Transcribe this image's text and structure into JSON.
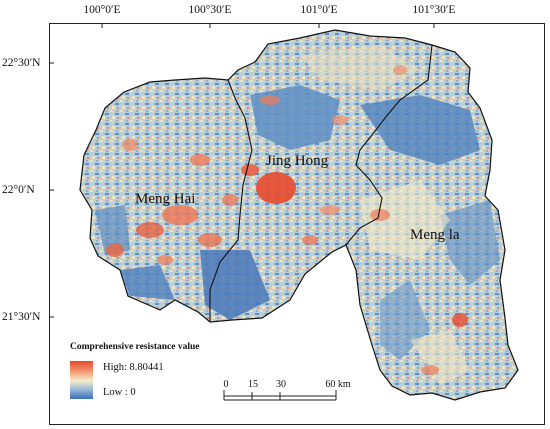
{
  "map": {
    "lon_labels": [
      "100°0′E",
      "100°30′E",
      "101°0′E",
      "101°30′E"
    ],
    "lat_labels": [
      "22°30′N",
      "22°0′N",
      "21°30′N"
    ],
    "regions": [
      "Meng Hai",
      "Jing Hong",
      "Meng la"
    ],
    "legend": {
      "title": "Comprehensive resistance value",
      "high": "High: 8.80441",
      "low": "Low : 0",
      "colors": {
        "high": "#e8492e",
        "mid": "#f5eccd",
        "low": "#3a6fb8"
      }
    },
    "scale_bar": {
      "ticks": [
        "0",
        "15",
        "30",
        "60 km"
      ]
    }
  }
}
